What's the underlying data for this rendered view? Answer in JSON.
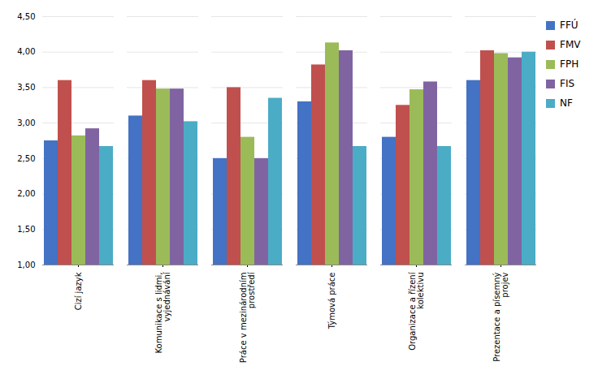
{
  "chart_data": {
    "type": "bar",
    "categories": [
      "Cizí jazyk",
      "Komunikace s lidmi,\nvyjednávání",
      "Práce v mezinárodním\nprostředí",
      "Týmová práce",
      "Organizace a řízení\nkolektivu",
      "Prezentace a písemný\nprojev"
    ],
    "series": [
      {
        "name": "FFÚ",
        "color": "#4472C4",
        "values": [
          2.75,
          3.1,
          2.5,
          3.3,
          2.8,
          3.6
        ]
      },
      {
        "name": "FMV",
        "color": "#C0504D",
        "values": [
          3.6,
          3.6,
          3.5,
          3.82,
          3.25,
          4.02
        ]
      },
      {
        "name": "FPH",
        "color": "#9BBB59",
        "values": [
          2.82,
          3.48,
          2.8,
          4.13,
          3.47,
          3.98
        ]
      },
      {
        "name": "FIS",
        "color": "#8064A2",
        "values": [
          2.92,
          3.48,
          2.5,
          4.02,
          3.58,
          3.92
        ]
      },
      {
        "name": "NF",
        "color": "#4BACC6",
        "values": [
          2.67,
          3.02,
          3.35,
          2.67,
          2.67,
          4.0
        ]
      }
    ],
    "ylim": [
      1.0,
      4.5
    ],
    "yticks": [
      {
        "value": 1.0,
        "label": "1,00"
      },
      {
        "value": 1.5,
        "label": "1,50"
      },
      {
        "value": 2.0,
        "label": "2,00"
      },
      {
        "value": 2.5,
        "label": "2,50"
      },
      {
        "value": 3.0,
        "label": "3,00"
      },
      {
        "value": 3.5,
        "label": "3,50"
      },
      {
        "value": 4.0,
        "label": "4,00"
      },
      {
        "value": 4.5,
        "label": "4,50"
      }
    ],
    "grid": true,
    "legend": "right"
  }
}
